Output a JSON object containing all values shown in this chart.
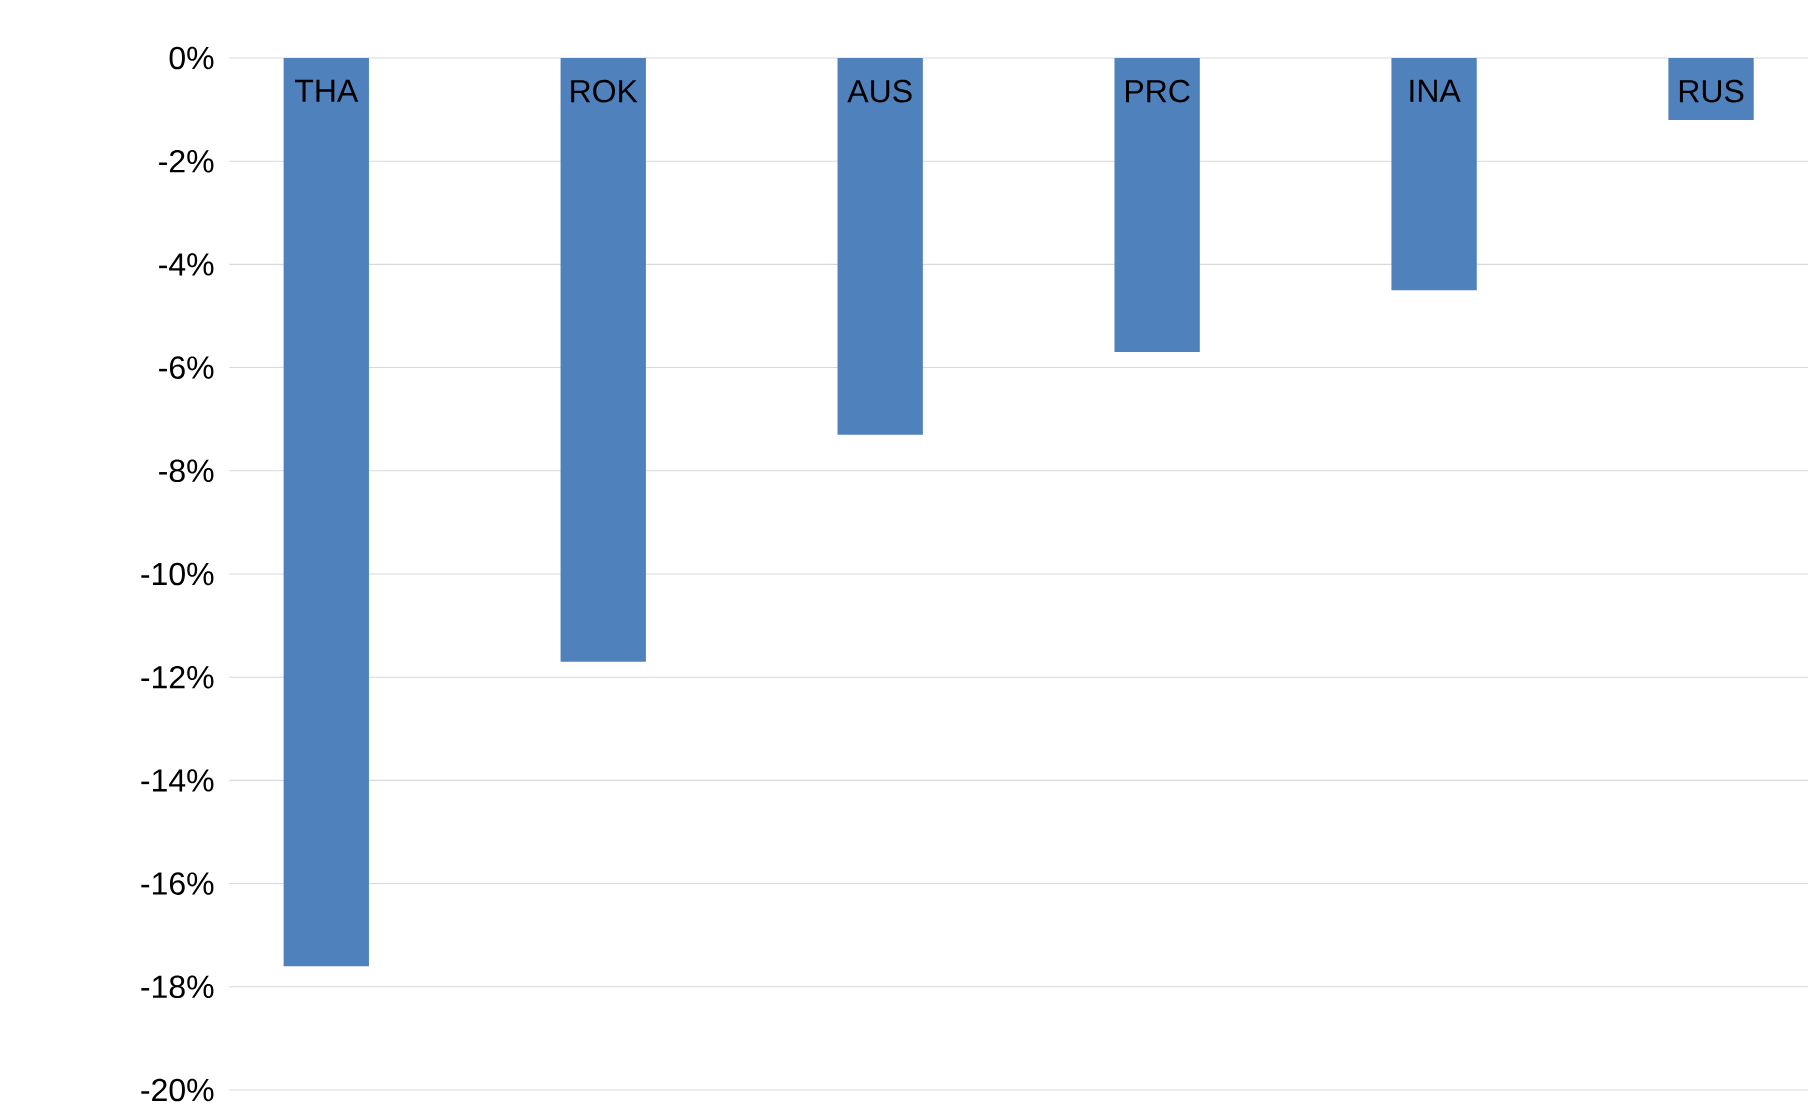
{
  "chart_data": {
    "type": "bar",
    "categories": [
      "THA",
      "ROK",
      "AUS",
      "PRC",
      "INA",
      "RUS"
    ],
    "values": [
      -17.6,
      -11.7,
      -7.3,
      -5.7,
      -4.5,
      -1.2
    ],
    "color": "#4f81bd",
    "ylim": [
      -20,
      0
    ],
    "yticks": [
      {
        "value": 0,
        "label": "0%"
      },
      {
        "value": -2,
        "label": "-2%"
      },
      {
        "value": -4,
        "label": "-4%"
      },
      {
        "value": -6,
        "label": "-6%"
      },
      {
        "value": -8,
        "label": "-8%"
      },
      {
        "value": -10,
        "label": "-10%"
      },
      {
        "value": -12,
        "label": "-12%"
      },
      {
        "value": -14,
        "label": "-14%"
      },
      {
        "value": -16,
        "label": "-16%"
      },
      {
        "value": -18,
        "label": "-18%"
      },
      {
        "value": -20,
        "label": "-20%"
      }
    ],
    "grid": "y"
  }
}
